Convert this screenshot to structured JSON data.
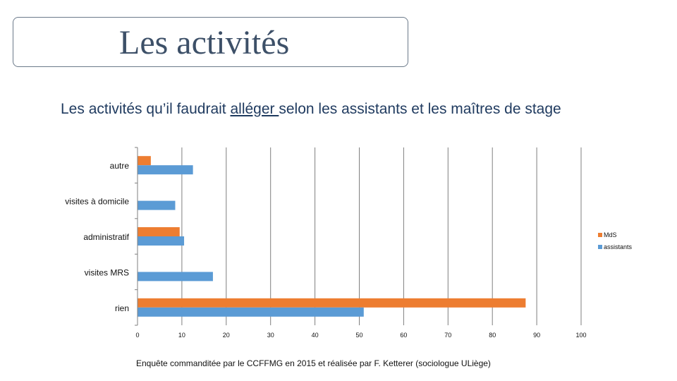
{
  "slide": {
    "title": "Les activités",
    "subtitle_before": "Les activités qu’il faudrait ",
    "subtitle_underlined": "alléger ",
    "subtitle_after": "selon les assistants et les maîtres de stage",
    "footnote": "Enquête commanditée par le CCFFMG en 2015 et réalisée par F. Ketterer (sociologue ULiège)"
  },
  "colors": {
    "mds": "#ed7d31",
    "assistants": "#5b9bd5",
    "grid": "#7f7f7f",
    "title": "#3d5068",
    "subtitle": "#1f3a5f"
  },
  "chart_data": {
    "type": "bar",
    "orientation": "horizontal",
    "categories": [
      "autre",
      "visites à domicile",
      "administratif",
      "visites MRS",
      "rien"
    ],
    "series": [
      {
        "name": "MdS",
        "values": [
          3,
          0,
          9.5,
          0,
          87.5
        ]
      },
      {
        "name": "assistants",
        "values": [
          12.5,
          8.5,
          10.5,
          17,
          51
        ]
      }
    ],
    "xlim": [
      0,
      100
    ],
    "xticks": [
      0,
      10,
      20,
      30,
      40,
      50,
      60,
      70,
      80,
      90,
      100
    ],
    "grid": true,
    "legend_position": "right"
  }
}
